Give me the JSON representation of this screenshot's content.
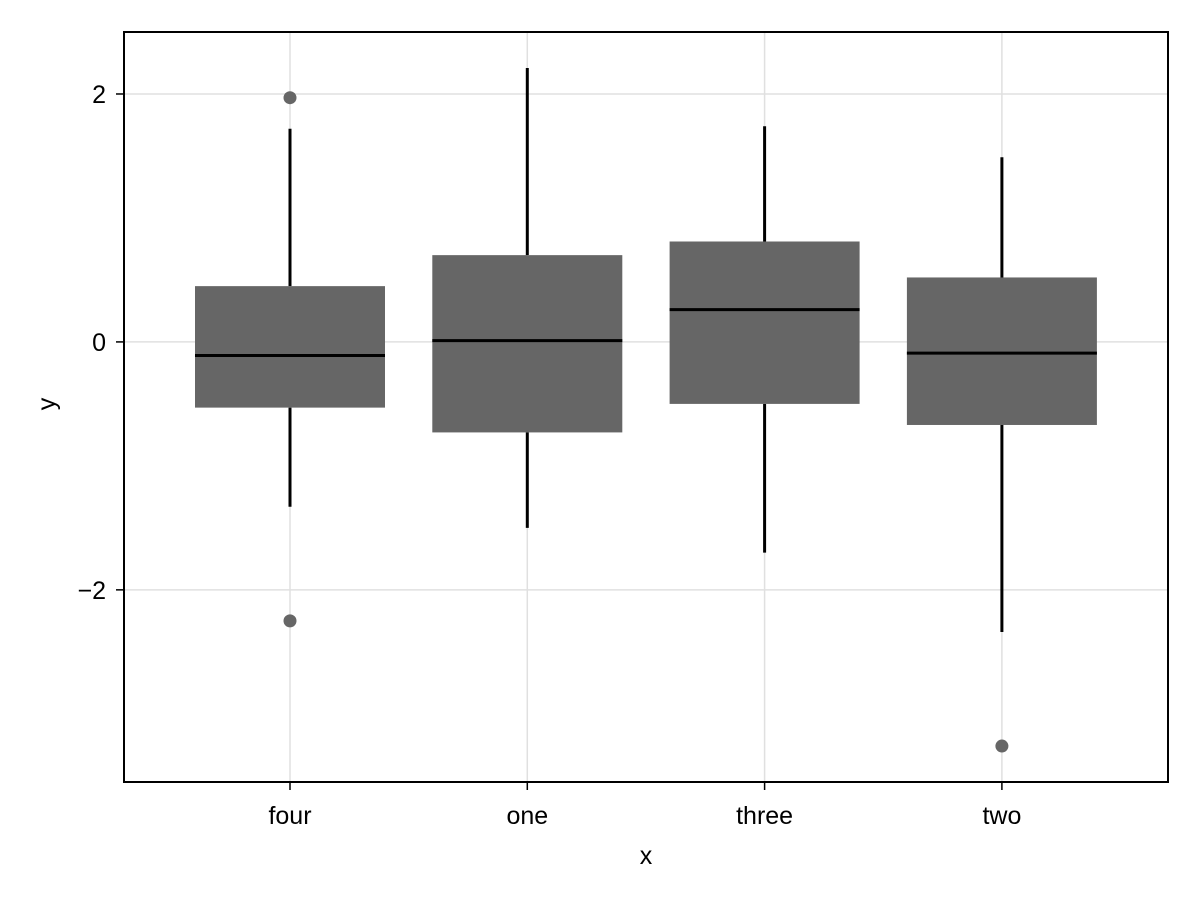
{
  "chart_data": {
    "type": "box",
    "categories": [
      "four",
      "one",
      "three",
      "two"
    ],
    "boxes": [
      {
        "category": "four",
        "whisker_low": -1.33,
        "q1": -0.53,
        "median": -0.11,
        "q3": 0.45,
        "whisker_high": 1.72,
        "outliers": [
          1.97,
          -2.25
        ]
      },
      {
        "category": "one",
        "whisker_low": -1.5,
        "q1": -0.73,
        "median": 0.01,
        "q3": 0.7,
        "whisker_high": 2.21,
        "outliers": []
      },
      {
        "category": "three",
        "whisker_low": -1.7,
        "q1": -0.5,
        "median": 0.26,
        "q3": 0.81,
        "whisker_high": 1.74,
        "outliers": []
      },
      {
        "category": "two",
        "whisker_low": -2.34,
        "q1": -0.67,
        "median": -0.09,
        "q3": 0.52,
        "whisker_high": 1.49,
        "outliers": [
          -3.26
        ]
      }
    ],
    "xlabel": "x",
    "ylabel": "y",
    "ylim": [
      -3.55,
      2.5
    ],
    "yticks": [
      {
        "value": -2,
        "label": "−2"
      },
      {
        "value": 0,
        "label": "0"
      },
      {
        "value": 2,
        "label": "2"
      }
    ],
    "grid": true,
    "colors": {
      "box": "#666666",
      "median": "#000000",
      "whisker": "#000000",
      "outlier": "#666666",
      "grid": "#e0e0e0",
      "frame": "#000000"
    }
  }
}
